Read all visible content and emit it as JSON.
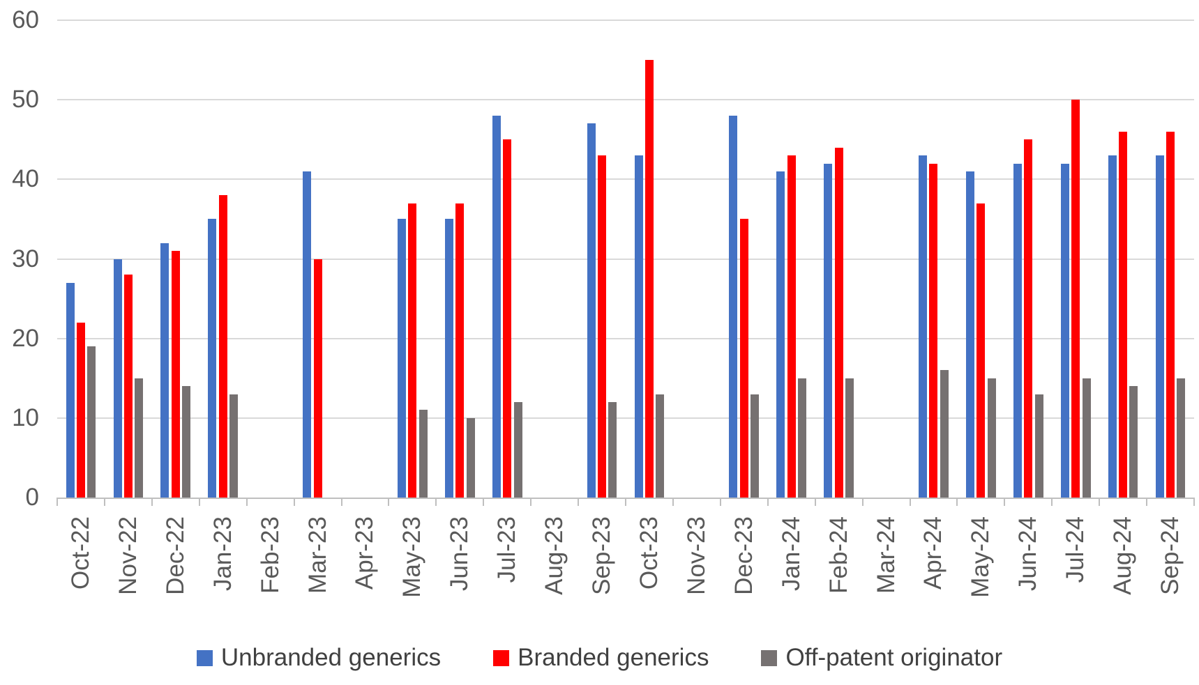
{
  "chart_data": {
    "type": "bar",
    "categories": [
      "Oct-22",
      "Nov-22",
      "Dec-22",
      "Jan-23",
      "Feb-23",
      "Mar-23",
      "Apr-23",
      "May-23",
      "Jun-23",
      "Jul-23",
      "Aug-23",
      "Sep-23",
      "Oct-23",
      "Nov-23",
      "Dec-23",
      "Jan-24",
      "Feb-24",
      "Mar-24",
      "Apr-24",
      "May-24",
      "Jun-24",
      "Jul-24",
      "Aug-24",
      "Sep-24"
    ],
    "series": [
      {
        "name": "Unbranded generics",
        "color": "#4472C4",
        "values": [
          27,
          30,
          32,
          35,
          null,
          41,
          null,
          35,
          35,
          48,
          null,
          47,
          43,
          null,
          48,
          41,
          42,
          null,
          43,
          41,
          42,
          42,
          43,
          43
        ]
      },
      {
        "name": "Branded generics",
        "color": "#FF0000",
        "values": [
          22,
          28,
          31,
          38,
          null,
          30,
          null,
          37,
          37,
          45,
          null,
          43,
          55,
          null,
          35,
          43,
          44,
          null,
          42,
          37,
          45,
          50,
          46,
          46
        ]
      },
      {
        "name": "Off-patent originator",
        "color": "#767171",
        "values": [
          19,
          15,
          14,
          13,
          null,
          null,
          null,
          11,
          10,
          12,
          null,
          12,
          13,
          null,
          13,
          15,
          15,
          null,
          16,
          15,
          13,
          15,
          14,
          15
        ]
      }
    ],
    "ylim": [
      0,
      60
    ],
    "yticks": [
      0,
      10,
      20,
      30,
      40,
      50,
      60
    ],
    "grid": true,
    "legend_position": "bottom"
  },
  "colors": {
    "gridline": "#D9D9D9",
    "axis_line": "#BFBFBF",
    "axis_text": "#595959",
    "legend_text": "#404040",
    "background": "#FFFFFF"
  }
}
